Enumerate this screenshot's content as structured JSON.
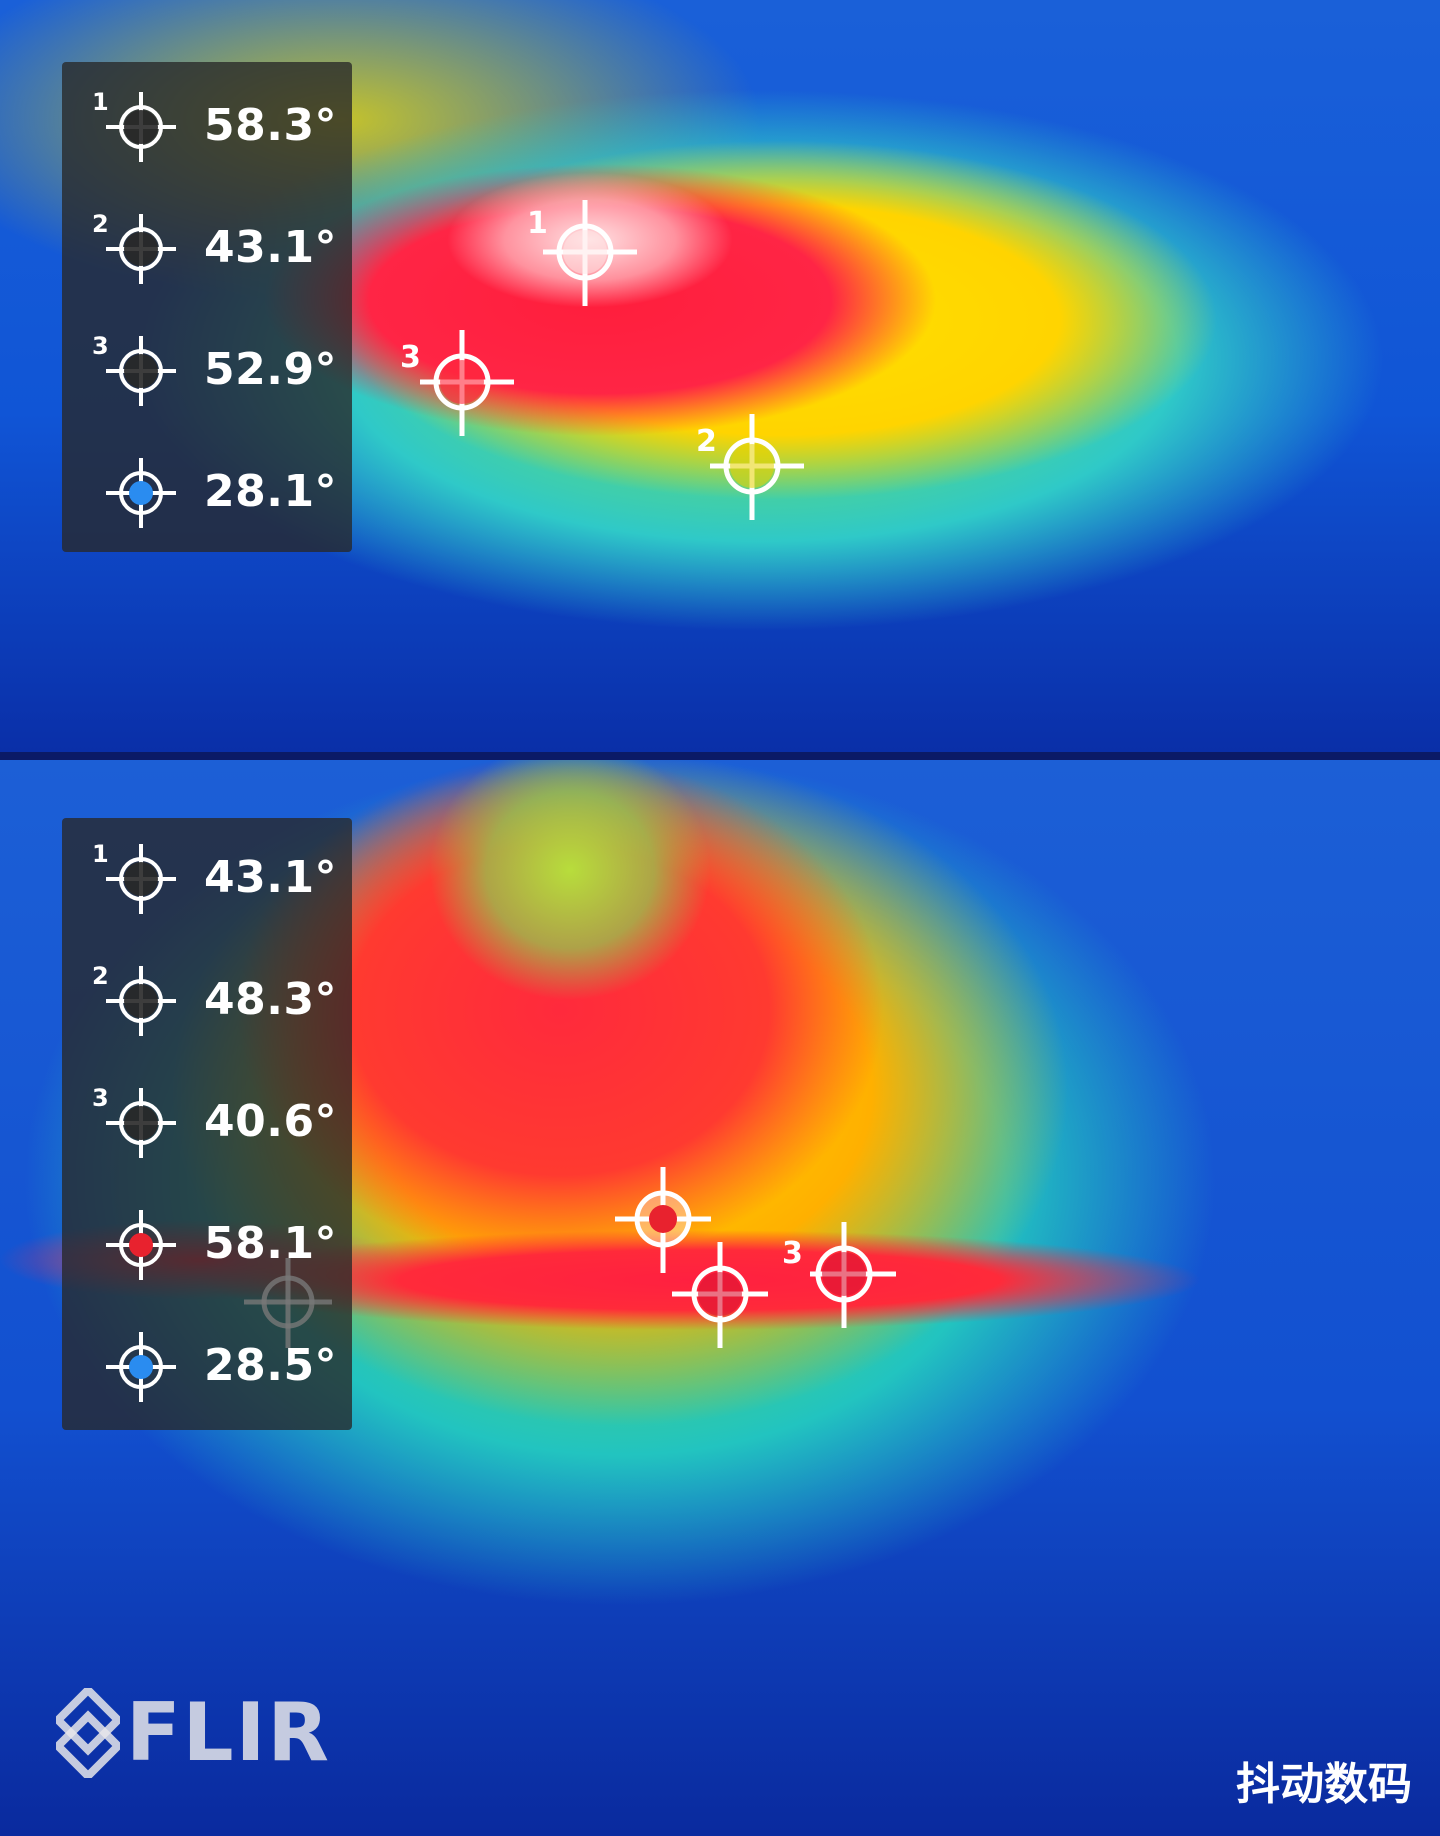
{
  "top": {
    "readings": [
      {
        "index": "1",
        "value": "58.3°",
        "kind": "spot"
      },
      {
        "index": "2",
        "value": "43.1°",
        "kind": "spot"
      },
      {
        "index": "3",
        "value": "52.9°",
        "kind": "spot"
      },
      {
        "index": "",
        "value": "28.1°",
        "kind": "cold"
      }
    ],
    "markers": [
      {
        "label": "1"
      },
      {
        "label": "2"
      },
      {
        "label": "3"
      }
    ]
  },
  "bottom": {
    "readings": [
      {
        "index": "1",
        "value": "43.1°",
        "kind": "spot"
      },
      {
        "index": "2",
        "value": "48.3°",
        "kind": "spot"
      },
      {
        "index": "3",
        "value": "40.6°",
        "kind": "spot"
      },
      {
        "index": "",
        "value": "58.1°",
        "kind": "hot"
      },
      {
        "index": "",
        "value": "28.5°",
        "kind": "cold"
      }
    ],
    "markers": [
      {
        "label": "3"
      }
    ],
    "logo": "FLIR"
  },
  "watermark": "抖动数码",
  "colors": {
    "hot": "#e8222e",
    "cold": "#2a8cf0",
    "panel": "#282828"
  }
}
